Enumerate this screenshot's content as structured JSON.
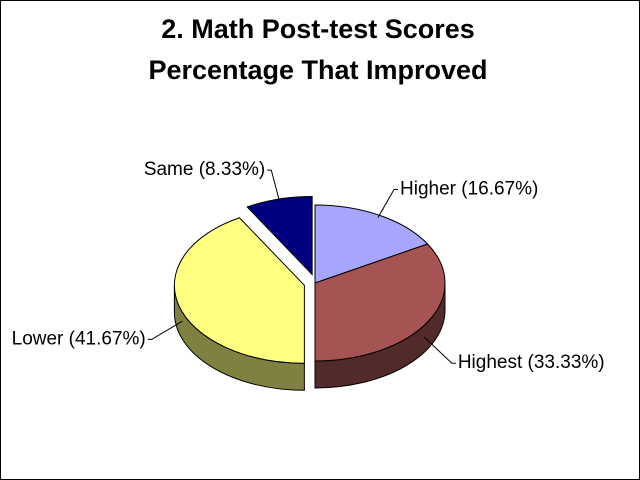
{
  "chart_data": {
    "type": "pie3d",
    "title": "2. Math Post-test Scores",
    "subtitle": "Percentage That Improved",
    "values": [
      16.67,
      33.33,
      41.67,
      8.33
    ],
    "value_labels": [
      "Higher (16.67%)",
      "Highest (33.33%)",
      "Lower (41.67%)",
      "Same (8.33%)"
    ],
    "colors": [
      "#a6a6ff",
      "#a65353",
      "#ffff80",
      "#000080"
    ],
    "exploded": [
      false,
      false,
      true,
      true
    ]
  }
}
